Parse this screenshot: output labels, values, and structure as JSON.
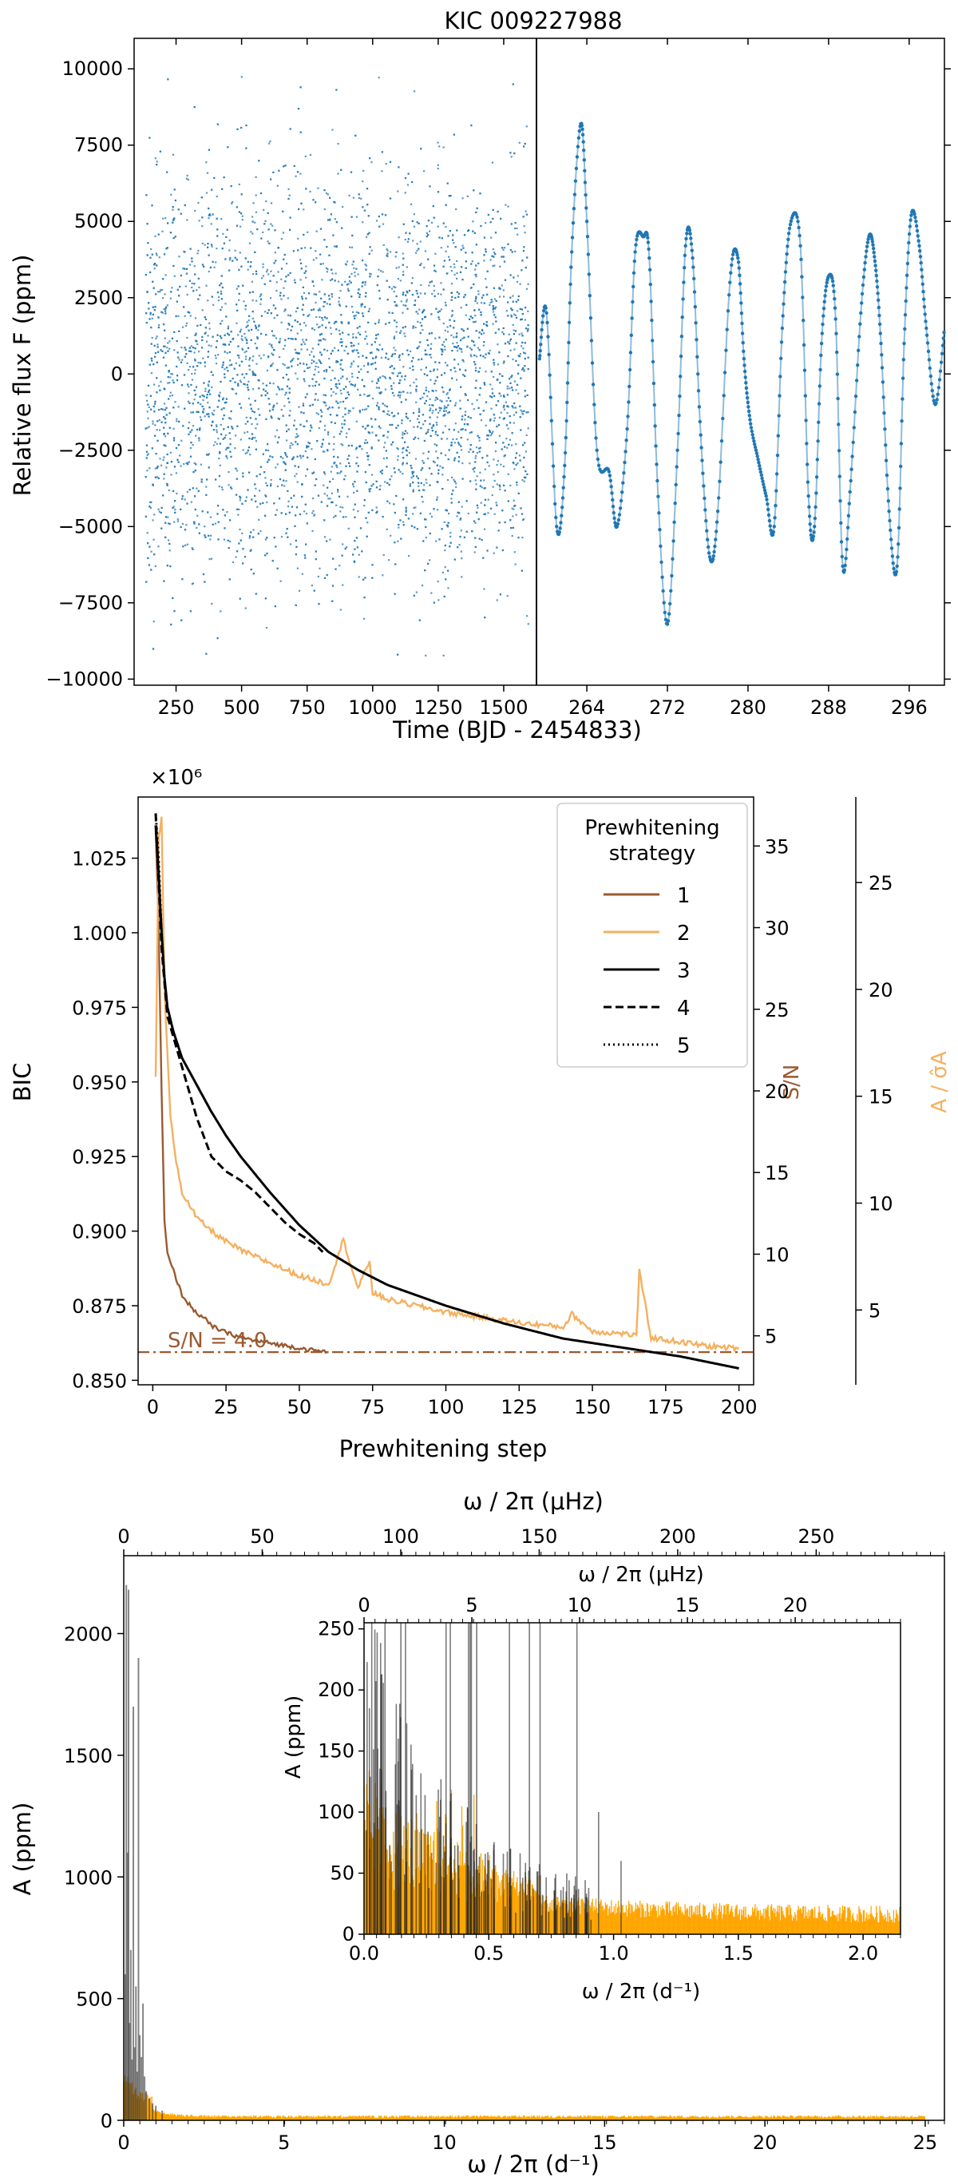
{
  "chart_data": [
    {
      "type": "scatter",
      "title": "KIC 009227988",
      "ylabel": "Relative flux F (ppm)",
      "xlabel": "Time (BJD - 2454833)",
      "ylim": [
        -10200,
        11000
      ],
      "yticks": [
        -10000,
        -7500,
        -5000,
        -2500,
        0,
        2500,
        5000,
        7500,
        10000
      ],
      "panels": [
        {
          "name": "full",
          "xlim": [
            90,
            1625
          ],
          "xticks": [
            250,
            500,
            750,
            1000,
            1250,
            1500
          ],
          "color": "#1f77b4",
          "approx_amplitude": 6000,
          "approx_range": [
            -9200,
            9900
          ]
        },
        {
          "name": "zoom",
          "xlim": [
            259,
            299.5
          ],
          "xticks": [
            264,
            272,
            280,
            288,
            296
          ],
          "color": "#1f77b4",
          "x": [
            259.3,
            260.0,
            261.0,
            261.8,
            262.5,
            263.4,
            264.0,
            265.0,
            266.2,
            267.0,
            268.0,
            268.8,
            269.6,
            270.2,
            271.0,
            272.0,
            273.0,
            273.8,
            274.5,
            275.3,
            276.2,
            277.0,
            278.2,
            279.0,
            279.6,
            280.2,
            281.0,
            281.8,
            282.6,
            283.4,
            284.2,
            285.2,
            286.0,
            286.6,
            287.3,
            288.0,
            288.7,
            289.4,
            290.2,
            291.2,
            292.0,
            292.6,
            293.2,
            294.0,
            294.8,
            295.5,
            296.2,
            297.0,
            297.7,
            298.6,
            299.5
          ],
          "y": [
            500,
            2000,
            -5000,
            -3000,
            4000,
            8200,
            5000,
            -2500,
            -3200,
            -5000,
            -1800,
            4000,
            4500,
            3800,
            -3500,
            -8200,
            -2500,
            4200,
            3800,
            -2000,
            -6000,
            -4500,
            3000,
            3800,
            500,
            -1500,
            -2800,
            -4000,
            -5000,
            1500,
            4900,
            4200,
            -4000,
            -5000,
            1000,
            3200,
            1800,
            -6300,
            -3500,
            2000,
            4500,
            3700,
            1000,
            -4500,
            -6300,
            1000,
            5200,
            4200,
            1500,
            -1000,
            1500
          ]
        }
      ]
    },
    {
      "type": "line",
      "xlabel": "Prewhitening step",
      "ylabel": "BIC",
      "y_multiplier": "×10⁶",
      "xlim": [
        -5,
        205
      ],
      "xticks": [
        0,
        25,
        50,
        75,
        100,
        125,
        150,
        175,
        200
      ],
      "ylim": [
        0.8485,
        1.0455
      ],
      "yticks": [
        0.85,
        0.875,
        0.9,
        0.925,
        0.95,
        0.975,
        1.0,
        1.025
      ],
      "ylabel_right1": "S/N",
      "ylim_right1": [
        2.0,
        38.0
      ],
      "yticks_right1": [
        5,
        10,
        15,
        20,
        25,
        30,
        35
      ],
      "ylabel_right2": "A / σ̂A",
      "ylim_right2": [
        1.5,
        29.0
      ],
      "yticks_right2": [
        5,
        10,
        15,
        20,
        25
      ],
      "threshold": {
        "value": 4.0,
        "label": "S/N = 4.0",
        "color": "#9a5a30"
      },
      "legend": {
        "title_lines": [
          "Prewhitening",
          "strategy"
        ],
        "position": "top-right",
        "entries": [
          "1",
          "2",
          "3",
          "4",
          "5"
        ]
      },
      "series": [
        {
          "name": "1",
          "axis": "right1",
          "color": "#9a5a30",
          "style": "solid",
          "x": [
            1,
            2,
            3,
            4,
            5,
            6,
            8,
            10,
            12,
            15,
            18,
            20,
            25,
            30,
            35,
            40,
            45,
            50,
            55,
            60
          ],
          "y": [
            36,
            30,
            20,
            12,
            10,
            9.5,
            8.5,
            7.5,
            7.0,
            6.4,
            6.0,
            5.6,
            5.2,
            4.9,
            4.7,
            4.55,
            4.4,
            4.25,
            4.1,
            4.0
          ]
        },
        {
          "name": "2",
          "axis": "right2",
          "color": "#f5b060",
          "style": "solid",
          "x": [
            1,
            2,
            3,
            4,
            6,
            8,
            10,
            15,
            20,
            25,
            30,
            40,
            50,
            55,
            60,
            65,
            70,
            74,
            75,
            80,
            90,
            100,
            110,
            125,
            140,
            143,
            150,
            160,
            165,
            166,
            170,
            175,
            180,
            190,
            200
          ],
          "y": [
            16,
            27,
            28,
            20,
            14,
            12,
            10.5,
            9.3,
            8.7,
            8.2,
            7.8,
            7.2,
            6.6,
            6.4,
            6.2,
            8.3,
            6.0,
            7.3,
            5.8,
            5.5,
            5.2,
            4.9,
            4.7,
            4.4,
            4.2,
            4.8,
            4.0,
            3.9,
            3.8,
            6.8,
            3.7,
            3.6,
            3.5,
            3.3,
            3.2
          ]
        },
        {
          "name": "3",
          "axis": "left",
          "color": "#000000",
          "style": "solid",
          "x": [
            1,
            2,
            3,
            4,
            5,
            7,
            10,
            15,
            20,
            25,
            30,
            40,
            50,
            60,
            70,
            80,
            100,
            120,
            140,
            160,
            180,
            200
          ],
          "y": [
            1.036,
            1.02,
            1.0,
            0.985,
            0.975,
            0.967,
            0.958,
            0.949,
            0.94,
            0.932,
            0.925,
            0.913,
            0.902,
            0.893,
            0.887,
            0.882,
            0.875,
            0.869,
            0.864,
            0.861,
            0.858,
            0.854
          ]
        },
        {
          "name": "4",
          "axis": "left",
          "color": "#000000",
          "style": "dashed",
          "x": [
            1,
            3,
            5,
            10,
            15,
            20,
            25,
            30,
            35,
            40,
            45,
            50,
            55,
            58
          ],
          "y": [
            1.04,
            0.995,
            0.972,
            0.955,
            0.938,
            0.925,
            0.92,
            0.917,
            0.913,
            0.908,
            0.903,
            0.899,
            0.896,
            0.893
          ]
        },
        {
          "name": "5",
          "axis": "left",
          "color": "#000000",
          "style": "dotted",
          "x": [
            1,
            2,
            3
          ],
          "y": [
            1.04,
            1.025,
            1.0
          ]
        }
      ]
    },
    {
      "type": "bar",
      "xlabel": "ω / 2π (d⁻¹)",
      "xlabel_top": "ω / 2π (μHz)",
      "ylabel": "A (ppm)",
      "xlim": [
        0,
        25.6
      ],
      "xticks": [
        0,
        5,
        10,
        15,
        20,
        25
      ],
      "xticks_top": [
        0,
        50,
        100,
        150,
        200,
        250
      ],
      "ylim": [
        0,
        2320
      ],
      "yticks": [
        0,
        500,
        1000,
        1500,
        2000
      ],
      "series": [
        {
          "name": "",
          "color": "#000000",
          "alpha": 0.55,
          "values_note": "",
          "x": [
            0.05,
            0.08,
            0.12,
            0.15,
            0.18,
            0.22,
            0.26,
            0.3,
            0.34,
            0.38,
            0.42,
            0.46,
            0.5,
            0.55,
            0.6,
            0.65,
            0.7,
            0.8,
            0.9,
            1.0,
            1.2
          ],
          "y": [
            600,
            2200,
            1100,
            2180,
            400,
            700,
            250,
            1700,
            300,
            550,
            200,
            1900,
            350,
            260,
            480,
            180,
            120,
            90,
            70,
            60,
            40
          ]
        },
        {
          "name": "",
          "color": "#ffa500",
          "decay": true
        }
      ],
      "inset": {
        "xlabel": "ω / 2π (d⁻¹)",
        "xlabel_top": "ω / 2π (μHz)",
        "ylabel": "A (ppm)",
        "xlim": [
          0,
          2.15
        ],
        "xticks": [
          0.0,
          0.5,
          1.0,
          1.5,
          2.0
        ],
        "xticks_top": [
          0,
          5,
          10,
          15,
          20
        ],
        "ylim": [
          0,
          255
        ],
        "yticks": [
          0,
          50,
          100,
          150,
          200,
          250
        ]
      }
    }
  ]
}
